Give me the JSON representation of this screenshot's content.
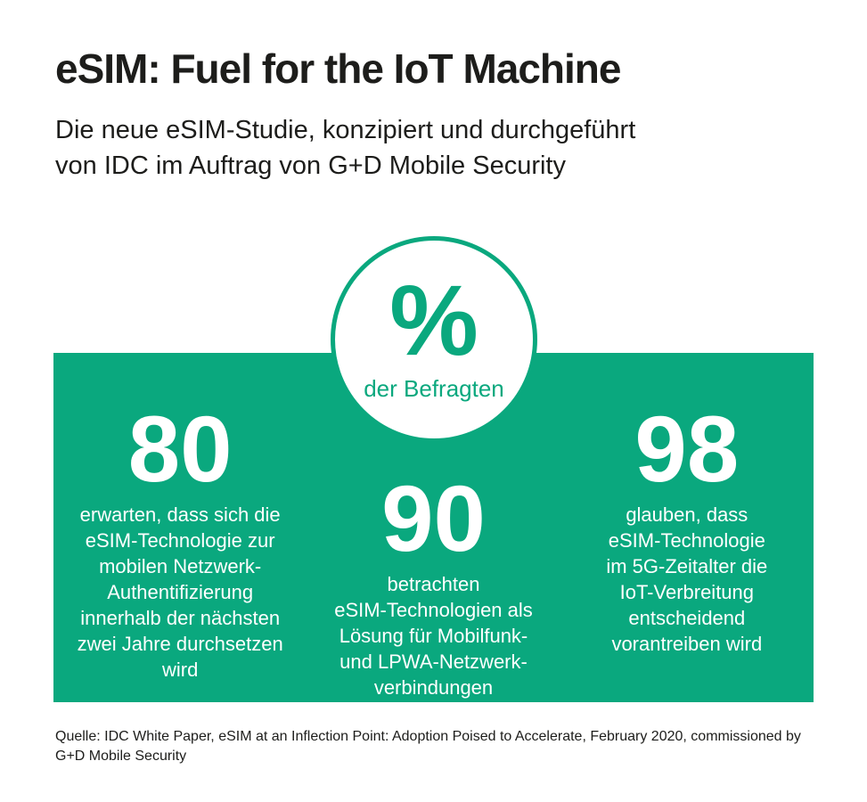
{
  "header": {
    "title": "eSIM: Fuel for the IoT Machine",
    "subtitle": "Die neue eSIM-Studie, konzipiert und durchgeführt\nvon IDC im Auftrag von G+D Mobile Security"
  },
  "badge": {
    "symbol": "%",
    "label": "der Befragten"
  },
  "stats": [
    {
      "value": "80",
      "description": "erwarten, dass sich die\neSIM-Technologie zur\nmobilen Netzwerk-\nAuthentifizierung\ninnerhalb der nächsten\nzwei Jahre durchsetzen\nwird"
    },
    {
      "value": "90",
      "description": "betrachten\neSIM-Technologien als\nLösung für Mobilfunk-\nund LPWA-Netzwerk-\nverbindungen"
    },
    {
      "value": "98",
      "description": "glauben, dass\neSIM-Technologie\nim 5G-Zeitalter die\nIoT-Verbreitung\nentscheidend\nvorantreiben wird"
    }
  ],
  "footer": {
    "source": "Quelle: IDC White Paper, eSIM at an Inflection Point: Adoption Poised to Accelerate, February 2020, commissioned by\nG+D Mobile Security"
  },
  "colors": {
    "teal": "#0aa87e",
    "text": "#1d1d1b",
    "panel_text": "#ffffff"
  },
  "chart_data": {
    "type": "table",
    "title": "eSIM: Fuel for the IoT Machine",
    "subtitle": "Die neue eSIM-Studie, konzipiert und durchgeführt von IDC im Auftrag von G+D Mobile Security",
    "unit": "% der Befragten",
    "categories": [
      "erwarten, dass sich die eSIM-Technologie zur mobilen Netzwerk-Authentifizierung innerhalb der nächsten zwei Jahre durchsetzen wird",
      "betrachten eSIM-Technologien als Lösung für Mobilfunk- und LPWA-Netzwerkverbindungen",
      "glauben, dass eSIM-Technologie im 5G-Zeitalter die IoT-Verbreitung entscheidend vorantreiben wird"
    ],
    "values": [
      80,
      90,
      98
    ],
    "legend_position": "none",
    "source": "Quelle: IDC White Paper, eSIM at an Inflection Point: Adoption Poised to Accelerate, February 2020, commissioned by G+D Mobile Security"
  }
}
